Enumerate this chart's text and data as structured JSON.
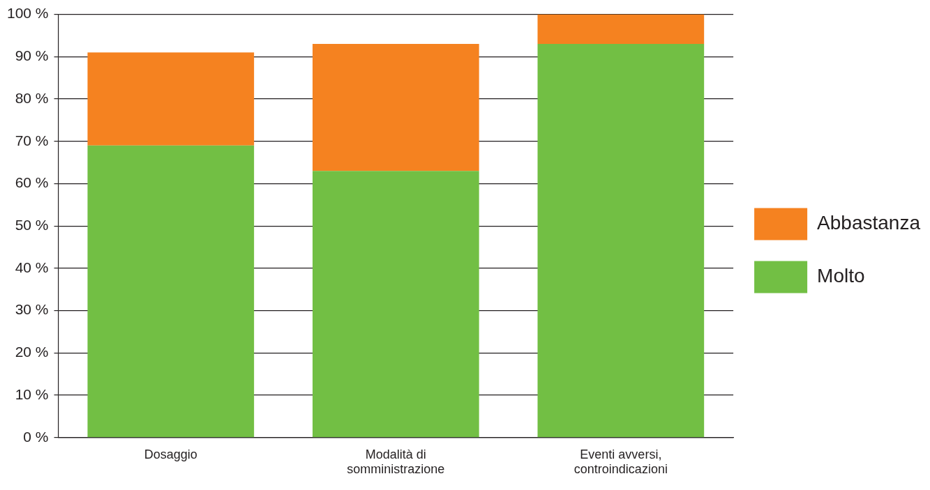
{
  "chart_data": {
    "type": "bar",
    "stacked": true,
    "categories": [
      "Dosaggio",
      "Modalità di somministrazione",
      "Eventi avversi, controindicazioni"
    ],
    "series": [
      {
        "name": "Molto",
        "color": "#72bf44",
        "values": [
          69,
          63,
          93
        ]
      },
      {
        "name": "Abbastanza",
        "color": "#f58220",
        "values": [
          22,
          30,
          7
        ]
      }
    ],
    "ylim": [
      0,
      100
    ],
    "yticks": [
      {
        "value": 0,
        "label": "0 %"
      },
      {
        "value": 10,
        "label": "10 %"
      },
      {
        "value": 20,
        "label": "20 %"
      },
      {
        "value": 30,
        "label": "30 %"
      },
      {
        "value": 40,
        "label": "40 %"
      },
      {
        "value": 50,
        "label": "50 %"
      },
      {
        "value": 60,
        "label": "60 %"
      },
      {
        "value": 70,
        "label": "70 %"
      },
      {
        "value": 80,
        "label": "80 %"
      },
      {
        "value": 90,
        "label": "90 %"
      },
      {
        "value": 100,
        "label": "100 %"
      }
    ],
    "grid": "y",
    "legend": "right"
  }
}
